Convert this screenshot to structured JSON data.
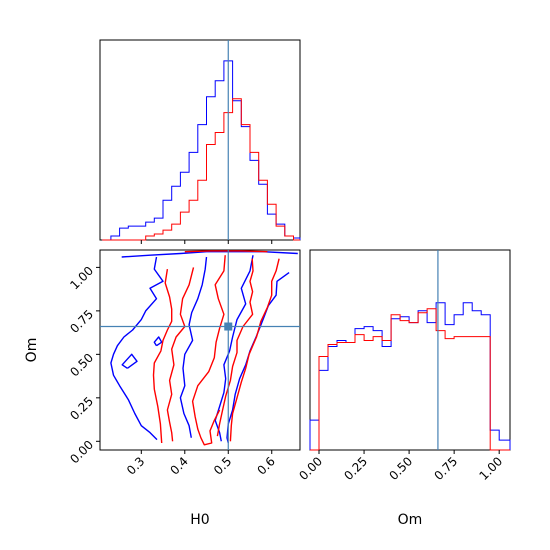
{
  "chart_data": {
    "type": "corner",
    "parameters": [
      "H0",
      "Om"
    ],
    "truth": {
      "H0": 0.5,
      "Om": 0.66
    },
    "series": [
      {
        "name": "",
        "color": "#0000ff"
      },
      {
        "name": "",
        "color": "#ff0000"
      }
    ],
    "truth_color": "#4682b4",
    "panels": {
      "h0_histogram": {
        "xlim": [
          0.205,
          0.665
        ],
        "tick_values": [
          0.3,
          0.4,
          0.5,
          0.6
        ],
        "bin_edges": [
          0.21,
          0.23,
          0.25,
          0.27,
          0.29,
          0.31,
          0.33,
          0.35,
          0.37,
          0.39,
          0.41,
          0.43,
          0.45,
          0.47,
          0.49,
          0.51,
          0.53,
          0.55,
          0.57,
          0.59,
          0.61,
          0.63,
          0.65,
          0.665
        ],
        "blue_density": [
          0.0,
          0.02,
          0.06,
          0.07,
          0.07,
          0.09,
          0.11,
          0.2,
          0.27,
          0.34,
          0.44,
          0.58,
          0.72,
          0.8,
          0.9,
          0.7,
          0.57,
          0.4,
          0.28,
          0.13,
          0.08,
          0.02,
          0.01
        ],
        "red_density": [
          0.0,
          0.0,
          0.0,
          0.0,
          0.0,
          0.02,
          0.03,
          0.05,
          0.08,
          0.14,
          0.2,
          0.3,
          0.48,
          0.54,
          0.64,
          0.71,
          0.58,
          0.44,
          0.3,
          0.18,
          0.07,
          0.02,
          0.0
        ]
      },
      "om_histogram": {
        "xlim": [
          -0.05,
          1.06
        ],
        "xlabel": "Om",
        "tick_labels": [
          "0.00",
          "0.25",
          "0.50",
          "0.75",
          "1.00"
        ],
        "tick_values": [
          0.0,
          0.25,
          0.5,
          0.75,
          1.0
        ],
        "bin_edges": [
          -0.05,
          0.0,
          0.05,
          0.1,
          0.15,
          0.2,
          0.25,
          0.3,
          0.35,
          0.4,
          0.45,
          0.5,
          0.55,
          0.6,
          0.65,
          0.7,
          0.75,
          0.8,
          0.85,
          0.9,
          0.95,
          1.0,
          1.06
        ],
        "blue_density": [
          0.15,
          0.4,
          0.52,
          0.55,
          0.54,
          0.61,
          0.62,
          0.6,
          0.52,
          0.66,
          0.67,
          0.64,
          0.7,
          0.64,
          0.74,
          0.63,
          0.68,
          0.74,
          0.7,
          0.68,
          0.1,
          0.05
        ],
        "red_density": [
          0.0,
          0.47,
          0.53,
          0.54,
          0.54,
          0.58,
          0.55,
          0.57,
          0.55,
          0.68,
          0.65,
          0.64,
          0.69,
          0.71,
          0.6,
          0.56,
          0.57,
          0.57,
          0.57,
          0.57,
          0.0,
          0.0
        ]
      },
      "joint": {
        "xlabel": "H0",
        "ylabel": "Om",
        "xlim": [
          0.205,
          0.665
        ],
        "ylim": [
          -0.05,
          1.1
        ],
        "x_tick_labels": [
          "0.3",
          "0.4",
          "0.5",
          "0.6"
        ],
        "x_tick_values": [
          0.3,
          0.4,
          0.5,
          0.6
        ],
        "y_tick_labels": [
          "0.00",
          "0.25",
          "0.50",
          "0.75",
          "1.00"
        ],
        "y_tick_values": [
          0.0,
          0.25,
          0.5,
          0.75,
          1.0
        ],
        "blue_contours": [
          [
            [
              0.255,
              1.06
            ],
            [
              0.32,
              1.07
            ],
            [
              0.39,
              1.08
            ],
            [
              0.45,
              1.09
            ],
            [
              0.51,
              1.09
            ],
            [
              0.58,
              1.09
            ],
            [
              0.66,
              1.08
            ]
          ],
          [
            [
              0.268,
              0.42
            ],
            [
              0.29,
              0.46
            ],
            [
              0.278,
              0.5
            ],
            [
              0.256,
              0.44
            ],
            [
              0.268,
              0.42
            ]
          ],
          [
            [
              0.335,
              0.55
            ],
            [
              0.347,
              0.57
            ],
            [
              0.34,
              0.6
            ],
            [
              0.33,
              0.57
            ],
            [
              0.335,
              0.55
            ]
          ],
          [
            [
              0.335,
              1.06
            ],
            [
              0.33,
              0.99
            ],
            [
              0.35,
              0.92
            ],
            [
              0.32,
              0.88
            ],
            [
              0.335,
              0.82
            ],
            [
              0.31,
              0.75
            ],
            [
              0.3,
              0.7
            ],
            [
              0.28,
              0.64
            ],
            [
              0.26,
              0.6
            ],
            [
              0.245,
              0.55
            ],
            [
              0.236,
              0.5
            ],
            [
              0.23,
              0.45
            ],
            [
              0.236,
              0.38
            ],
            [
              0.25,
              0.32
            ],
            [
              0.27,
              0.24
            ],
            [
              0.285,
              0.16
            ],
            [
              0.3,
              0.09
            ],
            [
              0.32,
              0.05
            ],
            [
              0.336,
              0.01
            ]
          ],
          [
            [
              0.45,
              1.06
            ],
            [
              0.447,
              0.99
            ],
            [
              0.44,
              0.9
            ],
            [
              0.43,
              0.82
            ],
            [
              0.416,
              0.74
            ],
            [
              0.41,
              0.67
            ],
            [
              0.418,
              0.58
            ],
            [
              0.4,
              0.5
            ],
            [
              0.396,
              0.42
            ],
            [
              0.4,
              0.32
            ],
            [
              0.39,
              0.25
            ],
            [
              0.398,
              0.16
            ],
            [
              0.41,
              0.09
            ],
            [
              0.415,
              0.02
            ]
          ],
          [
            [
              0.557,
              1.07
            ],
            [
              0.55,
              0.98
            ],
            [
              0.53,
              0.88
            ],
            [
              0.54,
              0.79
            ],
            [
              0.52,
              0.7
            ],
            [
              0.51,
              0.6
            ],
            [
              0.503,
              0.52
            ],
            [
              0.49,
              0.44
            ],
            [
              0.494,
              0.36
            ],
            [
              0.49,
              0.28
            ],
            [
              0.48,
              0.2
            ],
            [
              0.47,
              0.12
            ],
            [
              0.48,
              0.05
            ],
            [
              0.484,
              0.0
            ]
          ],
          [
            [
              0.64,
              0.97
            ],
            [
              0.612,
              0.92
            ],
            [
              0.61,
              0.84
            ],
            [
              0.592,
              0.78
            ],
            [
              0.58,
              0.7
            ],
            [
              0.564,
              0.6
            ],
            [
              0.55,
              0.52
            ],
            [
              0.54,
              0.44
            ],
            [
              0.526,
              0.36
            ],
            [
              0.516,
              0.27
            ],
            [
              0.51,
              0.18
            ],
            [
              0.5,
              0.1
            ],
            [
              0.497,
              0.02
            ],
            [
              0.5,
              -0.01
            ]
          ]
        ],
        "red_contours": [
          [
            [
              0.4,
              1.09
            ],
            [
              0.46,
              1.095
            ],
            [
              0.53,
              1.095
            ],
            [
              0.59,
              1.09
            ]
          ],
          [
            [
              0.42,
              1.0
            ],
            [
              0.41,
              0.9
            ],
            [
              0.395,
              0.82
            ],
            [
              0.39,
              0.73
            ],
            [
              0.4,
              0.66
            ],
            [
              0.38,
              0.6
            ],
            [
              0.37,
              0.53
            ],
            [
              0.375,
              0.44
            ],
            [
              0.365,
              0.35
            ],
            [
              0.37,
              0.27
            ],
            [
              0.36,
              0.18
            ],
            [
              0.365,
              0.11
            ],
            [
              0.37,
              0.05
            ],
            [
              0.372,
              0.0
            ]
          ],
          [
            [
              0.36,
              0.99
            ],
            [
              0.355,
              0.91
            ],
            [
              0.365,
              0.83
            ],
            [
              0.37,
              0.76
            ],
            [
              0.37,
              0.69
            ],
            [
              0.36,
              0.64
            ],
            [
              0.35,
              0.58
            ],
            [
              0.345,
              0.52
            ],
            [
              0.33,
              0.45
            ],
            [
              0.328,
              0.38
            ],
            [
              0.33,
              0.3
            ],
            [
              0.338,
              0.2
            ],
            [
              0.344,
              0.1
            ],
            [
              0.347,
              -0.01
            ]
          ],
          [
            [
              0.493,
              1.07
            ],
            [
              0.49,
              0.98
            ],
            [
              0.47,
              0.9
            ],
            [
              0.477,
              0.82
            ],
            [
              0.49,
              0.73
            ],
            [
              0.48,
              0.65
            ],
            [
              0.472,
              0.57
            ],
            [
              0.468,
              0.48
            ],
            [
              0.455,
              0.4
            ],
            [
              0.43,
              0.32
            ],
            [
              0.418,
              0.23
            ],
            [
              0.424,
              0.14
            ],
            [
              0.43,
              0.07
            ],
            [
              0.437,
              0.02
            ],
            [
              0.445,
              -0.02
            ],
            [
              0.462,
              -0.01
            ],
            [
              0.458,
              0.06
            ],
            [
              0.468,
              0.12
            ],
            [
              0.48,
              0.18
            ]
          ],
          [
            [
              0.555,
              1.05
            ],
            [
              0.557,
              0.98
            ],
            [
              0.55,
              0.92
            ],
            [
              0.556,
              0.86
            ],
            [
              0.55,
              0.8
            ],
            [
              0.556,
              0.73
            ],
            [
              0.534,
              0.66
            ],
            [
              0.52,
              0.58
            ],
            [
              0.52,
              0.51
            ],
            [
              0.51,
              0.43
            ],
            [
              0.505,
              0.35
            ],
            [
              0.494,
              0.26
            ],
            [
              0.487,
              0.18
            ],
            [
              0.48,
              0.1
            ],
            [
              0.475,
              0.03
            ]
          ],
          [
            [
              0.617,
              1.05
            ],
            [
              0.61,
              0.98
            ],
            [
              0.6,
              0.92
            ],
            [
              0.6,
              0.84
            ],
            [
              0.59,
              0.77
            ],
            [
              0.575,
              0.69
            ],
            [
              0.565,
              0.6
            ],
            [
              0.548,
              0.5
            ],
            [
              0.54,
              0.42
            ],
            [
              0.53,
              0.34
            ],
            [
              0.52,
              0.25
            ],
            [
              0.51,
              0.16
            ],
            [
              0.507,
              0.09
            ],
            [
              0.505,
              0.0
            ]
          ]
        ]
      }
    }
  }
}
